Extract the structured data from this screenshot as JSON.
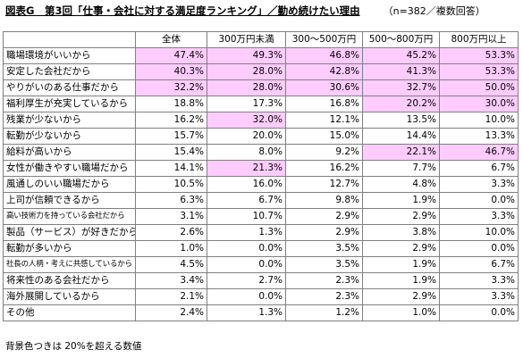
{
  "title": "図表G　第3回「仕事・会社に対する満足度ランキング」／勤め続けたい理由",
  "note": "（n=382／複数回答）",
  "footnote": "背景色つきは 20%を超える数値",
  "colors": {
    "highlight": "#ffccff",
    "border": "#808080"
  },
  "highlight_threshold_percent": 20,
  "chart_data": {
    "type": "table",
    "columns": [
      "全体",
      "300万円未満",
      "300～500万円",
      "500～800万円",
      "800万円以上"
    ],
    "unit": "%",
    "rows": [
      {
        "label": "職場環境がいいから",
        "values": [
          47.4,
          49.3,
          46.8,
          45.2,
          53.3
        ]
      },
      {
        "label": "安定した会社だから",
        "values": [
          40.3,
          28.0,
          42.8,
          41.3,
          53.3
        ]
      },
      {
        "label": "やりがいのある仕事だから",
        "values": [
          32.2,
          28.0,
          30.6,
          32.7,
          50.0
        ]
      },
      {
        "label": "福利厚生が充実しているから",
        "values": [
          18.8,
          17.3,
          16.8,
          20.2,
          30.0
        ]
      },
      {
        "label": "残業が少ないから",
        "values": [
          16.2,
          32.0,
          12.1,
          13.5,
          10.0
        ]
      },
      {
        "label": "転勤が少ないから",
        "values": [
          15.7,
          20.0,
          15.0,
          14.4,
          13.3
        ]
      },
      {
        "label": "給料が高いから",
        "values": [
          15.4,
          8.0,
          9.2,
          22.1,
          46.7
        ]
      },
      {
        "label": "女性が働きやすい職場だから",
        "values": [
          14.1,
          21.3,
          16.2,
          7.7,
          6.7
        ]
      },
      {
        "label": "風通しのいい職場だから",
        "values": [
          10.5,
          16.0,
          12.7,
          4.8,
          3.3
        ]
      },
      {
        "label": "上司が信頼できるから",
        "values": [
          6.3,
          6.7,
          9.8,
          1.9,
          0.0
        ]
      },
      {
        "label": "高い技術力を持っている会社だから",
        "values": [
          3.1,
          10.7,
          2.9,
          2.9,
          3.3
        ],
        "small": true
      },
      {
        "label": "製品（サービス）が好きだから",
        "values": [
          2.6,
          1.3,
          2.9,
          3.8,
          10.0
        ]
      },
      {
        "label": "転勤が多いから",
        "values": [
          1.0,
          0.0,
          3.5,
          2.9,
          0.0
        ]
      },
      {
        "label": "社長の人柄・考えに共感しているから",
        "values": [
          4.5,
          0.0,
          3.5,
          1.9,
          6.7
        ],
        "small": true
      },
      {
        "label": "将来性のある会社だから",
        "values": [
          3.4,
          2.7,
          2.3,
          1.9,
          3.3
        ]
      },
      {
        "label": "海外展開しているから",
        "values": [
          2.1,
          0.0,
          2.3,
          2.9,
          3.3
        ]
      },
      {
        "label": "その他",
        "values": [
          2.4,
          1.3,
          1.2,
          1.0,
          0.0
        ]
      }
    ]
  }
}
